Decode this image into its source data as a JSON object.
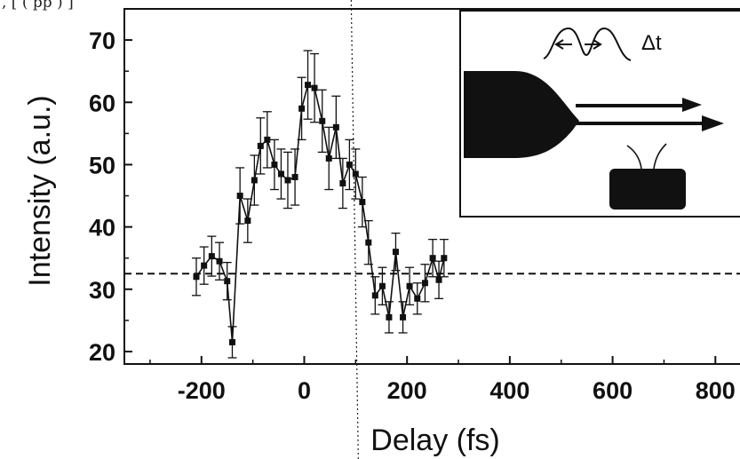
{
  "header_fragment": ", [                (     pp )   ]",
  "chart_data": {
    "type": "scatter",
    "xlabel": "Delay (fs)",
    "ylabel": "Intensity (a.u.)",
    "xlim": [
      -350,
      860
    ],
    "ylim": [
      18,
      75
    ],
    "xticks": [
      -200,
      0,
      200,
      400,
      600,
      800
    ],
    "yticks": [
      20,
      30,
      40,
      50,
      60,
      70
    ],
    "grid": false,
    "legend": "none",
    "baseline_y": 32.5,
    "marker_line": true,
    "points": [
      {
        "x": -210,
        "y": 32.0,
        "err": 3.0
      },
      {
        "x": -195,
        "y": 33.8,
        "err": 3.0
      },
      {
        "x": -180,
        "y": 35.3,
        "err": 3.2
      },
      {
        "x": -165,
        "y": 34.5,
        "err": 3.0
      },
      {
        "x": -150,
        "y": 31.3,
        "err": 3.0
      },
      {
        "x": -140,
        "y": 21.5,
        "err": 2.5
      },
      {
        "x": -125,
        "y": 45.0,
        "err": 4.5
      },
      {
        "x": -110,
        "y": 41.0,
        "err": 3.5
      },
      {
        "x": -97,
        "y": 47.5,
        "err": 4.0
      },
      {
        "x": -85,
        "y": 53.0,
        "err": 4.5
      },
      {
        "x": -72,
        "y": 54.0,
        "err": 4.5
      },
      {
        "x": -58,
        "y": 50.0,
        "err": 4.0
      },
      {
        "x": -45,
        "y": 48.5,
        "err": 4.0
      },
      {
        "x": -32,
        "y": 47.5,
        "err": 4.5
      },
      {
        "x": -18,
        "y": 48.0,
        "err": 4.5
      },
      {
        "x": -5,
        "y": 59.0,
        "err": 5.0
      },
      {
        "x": 7,
        "y": 62.8,
        "err": 5.5
      },
      {
        "x": 20,
        "y": 62.3,
        "err": 5.5
      },
      {
        "x": 35,
        "y": 57.0,
        "err": 5.0
      },
      {
        "x": 48,
        "y": 51.0,
        "err": 5.0
      },
      {
        "x": 62,
        "y": 56.0,
        "err": 5.0
      },
      {
        "x": 75,
        "y": 47.0,
        "err": 4.0
      },
      {
        "x": 88,
        "y": 50.0,
        "err": 4.0
      },
      {
        "x": 100,
        "y": 48.5,
        "err": 4.0
      },
      {
        "x": 113,
        "y": 44.0,
        "err": 4.0
      },
      {
        "x": 125,
        "y": 37.5,
        "err": 3.5
      },
      {
        "x": 138,
        "y": 29.0,
        "err": 3.0
      },
      {
        "x": 152,
        "y": 30.5,
        "err": 3.0
      },
      {
        "x": 165,
        "y": 25.5,
        "err": 2.5
      },
      {
        "x": 178,
        "y": 36.0,
        "err": 3.0
      },
      {
        "x": 192,
        "y": 25.5,
        "err": 2.5
      },
      {
        "x": 205,
        "y": 30.5,
        "err": 3.0
      },
      {
        "x": 220,
        "y": 28.5,
        "err": 2.5
      },
      {
        "x": 235,
        "y": 31.0,
        "err": 3.0
      },
      {
        "x": 250,
        "y": 35.0,
        "err": 3.0
      },
      {
        "x": 262,
        "y": 31.5,
        "err": 3.0
      },
      {
        "x": 272,
        "y": 35.0,
        "err": 3.0
      }
    ]
  },
  "inset": {
    "delta_label": "Δt"
  },
  "colors": {
    "ink": "#111111",
    "paper": "#ffffff"
  }
}
